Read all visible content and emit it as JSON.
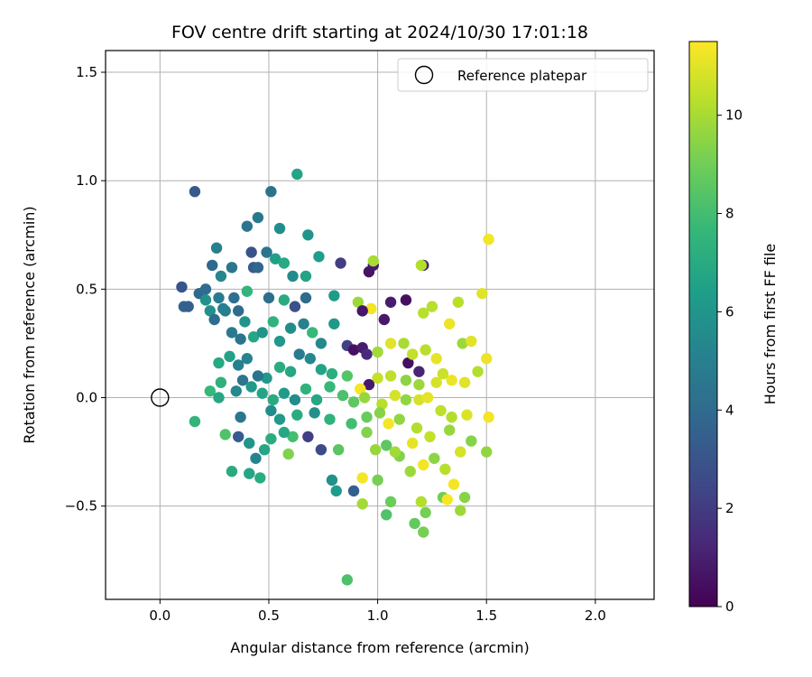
{
  "chart_data": {
    "type": "scatter",
    "title": "FOV centre drift starting at 2024/10/30 17:01:18",
    "xlabel": "Angular distance from reference (arcmin)",
    "ylabel": "Rotation from reference (arcmin)",
    "xlim": [
      -0.25,
      2.27
    ],
    "ylim": [
      -0.93,
      1.6
    ],
    "xticks": [
      0.0,
      0.5,
      1.0,
      1.5,
      2.0
    ],
    "xtick_labels": [
      "0.0",
      "0.5",
      "1.0",
      "1.5",
      "2.0"
    ],
    "yticks": [
      -0.5,
      0.0,
      0.5,
      1.0,
      1.5
    ],
    "ytick_labels": [
      "−0.5",
      "0.0",
      "0.5",
      "1.0",
      "1.5"
    ],
    "grid": true,
    "legend": {
      "placement": "top-right",
      "entries": [
        {
          "label": "Reference platepar",
          "marker": "open-circle"
        }
      ]
    },
    "reference_point": {
      "x": 0.0,
      "y": 0.0
    },
    "colorbar": {
      "label": "Hours from first FF file",
      "colormap": "viridis",
      "range": [
        0,
        11.5
      ],
      "ticks": [
        0,
        2,
        4,
        6,
        8,
        10
      ],
      "tick_labels": [
        "0",
        "2",
        "4",
        "6",
        "8",
        "10"
      ]
    },
    "points": [
      {
        "x": 0.16,
        "y": 0.95,
        "c": 3.2
      },
      {
        "x": 0.63,
        "y": 1.03,
        "c": 6.7
      },
      {
        "x": 0.51,
        "y": 0.95,
        "c": 4.3
      },
      {
        "x": 0.4,
        "y": 0.79,
        "c": 4.4
      },
      {
        "x": 0.45,
        "y": 0.83,
        "c": 4.6
      },
      {
        "x": 0.55,
        "y": 0.78,
        "c": 5.6
      },
      {
        "x": 0.68,
        "y": 0.75,
        "c": 6.0
      },
      {
        "x": 0.1,
        "y": 0.51,
        "c": 3.0
      },
      {
        "x": 0.11,
        "y": 0.42,
        "c": 3.6
      },
      {
        "x": 0.13,
        "y": 0.42,
        "c": 3.5
      },
      {
        "x": 0.18,
        "y": 0.48,
        "c": 3.9
      },
      {
        "x": 0.21,
        "y": 0.5,
        "c": 4.1
      },
      {
        "x": 0.24,
        "y": 0.61,
        "c": 3.9
      },
      {
        "x": 0.26,
        "y": 0.69,
        "c": 5.0
      },
      {
        "x": 0.28,
        "y": 0.56,
        "c": 5.3
      },
      {
        "x": 0.27,
        "y": 0.46,
        "c": 4.8
      },
      {
        "x": 0.3,
        "y": 0.4,
        "c": 4.7
      },
      {
        "x": 0.33,
        "y": 0.6,
        "c": 4.5
      },
      {
        "x": 0.34,
        "y": 0.46,
        "c": 4.2
      },
      {
        "x": 0.36,
        "y": 0.4,
        "c": 4.0
      },
      {
        "x": 0.42,
        "y": 0.67,
        "c": 2.9
      },
      {
        "x": 0.43,
        "y": 0.6,
        "c": 3.3
      },
      {
        "x": 0.45,
        "y": 0.6,
        "c": 3.8
      },
      {
        "x": 0.49,
        "y": 0.67,
        "c": 4.5
      },
      {
        "x": 0.53,
        "y": 0.64,
        "c": 6.5
      },
      {
        "x": 0.57,
        "y": 0.62,
        "c": 6.9
      },
      {
        "x": 0.61,
        "y": 0.56,
        "c": 5.5
      },
      {
        "x": 0.67,
        "y": 0.56,
        "c": 6.7
      },
      {
        "x": 0.73,
        "y": 0.65,
        "c": 6.4
      },
      {
        "x": 0.83,
        "y": 0.62,
        "c": 2.1
      },
      {
        "x": 0.96,
        "y": 0.58,
        "c": 0.6
      },
      {
        "x": 0.98,
        "y": 0.61,
        "c": 0.8
      },
      {
        "x": 0.98,
        "y": 0.63,
        "c": 10.0
      },
      {
        "x": 1.21,
        "y": 0.61,
        "c": 1.0
      },
      {
        "x": 1.2,
        "y": 0.61,
        "c": 10.2
      },
      {
        "x": 1.51,
        "y": 0.73,
        "c": 11.3
      },
      {
        "x": 1.48,
        "y": 0.48,
        "c": 11.0
      },
      {
        "x": 1.37,
        "y": 0.44,
        "c": 10.3
      },
      {
        "x": 1.25,
        "y": 0.42,
        "c": 10.3
      },
      {
        "x": 1.21,
        "y": 0.39,
        "c": 10.3
      },
      {
        "x": 1.13,
        "y": 0.45,
        "c": 0.5
      },
      {
        "x": 1.06,
        "y": 0.44,
        "c": 0.9
      },
      {
        "x": 0.91,
        "y": 0.44,
        "c": 9.8
      },
      {
        "x": 0.97,
        "y": 0.41,
        "c": 11.3
      },
      {
        "x": 1.03,
        "y": 0.36,
        "c": 0.8
      },
      {
        "x": 0.93,
        "y": 0.4,
        "c": 0.7
      },
      {
        "x": 0.8,
        "y": 0.47,
        "c": 6.3
      },
      {
        "x": 0.67,
        "y": 0.46,
        "c": 4.0
      },
      {
        "x": 0.62,
        "y": 0.42,
        "c": 2.8
      },
      {
        "x": 0.57,
        "y": 0.45,
        "c": 7.0
      },
      {
        "x": 0.5,
        "y": 0.46,
        "c": 4.2
      },
      {
        "x": 0.4,
        "y": 0.49,
        "c": 7.5
      },
      {
        "x": 0.21,
        "y": 0.45,
        "c": 5.8
      },
      {
        "x": 0.23,
        "y": 0.4,
        "c": 5.8
      },
      {
        "x": 0.25,
        "y": 0.36,
        "c": 4.1
      },
      {
        "x": 0.29,
        "y": 0.41,
        "c": 5.0
      },
      {
        "x": 0.33,
        "y": 0.3,
        "c": 4.7
      },
      {
        "x": 0.37,
        "y": 0.27,
        "c": 4.4
      },
      {
        "x": 0.39,
        "y": 0.35,
        "c": 5.9
      },
      {
        "x": 0.43,
        "y": 0.28,
        "c": 6.8
      },
      {
        "x": 0.47,
        "y": 0.3,
        "c": 6.0
      },
      {
        "x": 0.52,
        "y": 0.35,
        "c": 7.4
      },
      {
        "x": 0.55,
        "y": 0.26,
        "c": 6.1
      },
      {
        "x": 0.6,
        "y": 0.32,
        "c": 5.6
      },
      {
        "x": 0.66,
        "y": 0.34,
        "c": 5.0
      },
      {
        "x": 0.7,
        "y": 0.3,
        "c": 7.7
      },
      {
        "x": 0.74,
        "y": 0.25,
        "c": 5.4
      },
      {
        "x": 0.8,
        "y": 0.34,
        "c": 6.1
      },
      {
        "x": 0.86,
        "y": 0.24,
        "c": 2.2
      },
      {
        "x": 0.89,
        "y": 0.22,
        "c": 0.5
      },
      {
        "x": 0.93,
        "y": 0.23,
        "c": 0.9
      },
      {
        "x": 0.95,
        "y": 0.2,
        "c": 1.4
      },
      {
        "x": 1.0,
        "y": 0.21,
        "c": 9.9
      },
      {
        "x": 1.06,
        "y": 0.25,
        "c": 11.0
      },
      {
        "x": 1.12,
        "y": 0.25,
        "c": 10.0
      },
      {
        "x": 1.14,
        "y": 0.16,
        "c": 0.5
      },
      {
        "x": 1.19,
        "y": 0.12,
        "c": 1.2
      },
      {
        "x": 1.16,
        "y": 0.2,
        "c": 10.5
      },
      {
        "x": 1.22,
        "y": 0.22,
        "c": 10.3
      },
      {
        "x": 1.27,
        "y": 0.18,
        "c": 11.1
      },
      {
        "x": 1.3,
        "y": 0.11,
        "c": 10.6
      },
      {
        "x": 1.33,
        "y": 0.34,
        "c": 11.2
      },
      {
        "x": 1.39,
        "y": 0.25,
        "c": 9.8
      },
      {
        "x": 1.43,
        "y": 0.26,
        "c": 11.0
      },
      {
        "x": 1.5,
        "y": 0.18,
        "c": 11.2
      },
      {
        "x": 1.46,
        "y": 0.12,
        "c": 10.2
      },
      {
        "x": 1.4,
        "y": 0.07,
        "c": 11.0
      },
      {
        "x": 1.34,
        "y": 0.08,
        "c": 11.2
      },
      {
        "x": 1.27,
        "y": 0.07,
        "c": 10.8
      },
      {
        "x": 1.19,
        "y": 0.06,
        "c": 9.8
      },
      {
        "x": 1.13,
        "y": 0.08,
        "c": 9.5
      },
      {
        "x": 1.06,
        "y": 0.1,
        "c": 10.4
      },
      {
        "x": 1.0,
        "y": 0.09,
        "c": 10.5
      },
      {
        "x": 0.96,
        "y": 0.06,
        "c": 0.8
      },
      {
        "x": 0.92,
        "y": 0.04,
        "c": 11.3
      },
      {
        "x": 0.86,
        "y": 0.1,
        "c": 8.4
      },
      {
        "x": 0.79,
        "y": 0.11,
        "c": 7.2
      },
      {
        "x": 0.74,
        "y": 0.13,
        "c": 6.7
      },
      {
        "x": 0.69,
        "y": 0.18,
        "c": 5.4
      },
      {
        "x": 0.64,
        "y": 0.2,
        "c": 4.8
      },
      {
        "x": 0.6,
        "y": 0.12,
        "c": 6.8
      },
      {
        "x": 0.55,
        "y": 0.14,
        "c": 7.1
      },
      {
        "x": 0.49,
        "y": 0.09,
        "c": 6.1
      },
      {
        "x": 0.45,
        "y": 0.1,
        "c": 4.4
      },
      {
        "x": 0.4,
        "y": 0.18,
        "c": 5.2
      },
      {
        "x": 0.36,
        "y": 0.15,
        "c": 5.0
      },
      {
        "x": 0.32,
        "y": 0.19,
        "c": 6.6
      },
      {
        "x": 0.27,
        "y": 0.16,
        "c": 6.9
      },
      {
        "x": 0.28,
        "y": 0.07,
        "c": 7.3
      },
      {
        "x": 0.23,
        "y": 0.03,
        "c": 7.7
      },
      {
        "x": 0.27,
        "y": 0.0,
        "c": 6.8
      },
      {
        "x": 0.35,
        "y": 0.03,
        "c": 5.4
      },
      {
        "x": 0.38,
        "y": 0.08,
        "c": 4.5
      },
      {
        "x": 0.42,
        "y": 0.05,
        "c": 6.2
      },
      {
        "x": 0.47,
        "y": 0.02,
        "c": 6.7
      },
      {
        "x": 0.52,
        "y": -0.01,
        "c": 7.0
      },
      {
        "x": 0.57,
        "y": 0.02,
        "c": 6.2
      },
      {
        "x": 0.62,
        "y": -0.01,
        "c": 5.6
      },
      {
        "x": 0.67,
        "y": 0.04,
        "c": 7.4
      },
      {
        "x": 0.72,
        "y": -0.01,
        "c": 6.8
      },
      {
        "x": 0.78,
        "y": 0.05,
        "c": 7.7
      },
      {
        "x": 0.84,
        "y": 0.01,
        "c": 8.2
      },
      {
        "x": 0.89,
        "y": -0.02,
        "c": 8.6
      },
      {
        "x": 0.94,
        "y": 0.0,
        "c": 9.7
      },
      {
        "x": 1.02,
        "y": -0.03,
        "c": 10.3
      },
      {
        "x": 1.08,
        "y": 0.01,
        "c": 10.8
      },
      {
        "x": 1.13,
        "y": -0.01,
        "c": 9.6
      },
      {
        "x": 1.19,
        "y": -0.01,
        "c": 10.8
      },
      {
        "x": 1.23,
        "y": 0.0,
        "c": 11.1
      },
      {
        "x": 1.29,
        "y": -0.06,
        "c": 10.4
      },
      {
        "x": 1.34,
        "y": -0.09,
        "c": 10.2
      },
      {
        "x": 1.41,
        "y": -0.08,
        "c": 10.9
      },
      {
        "x": 1.51,
        "y": -0.09,
        "c": 11.3
      },
      {
        "x": 1.5,
        "y": -0.25,
        "c": 9.6
      },
      {
        "x": 1.43,
        "y": -0.2,
        "c": 9.4
      },
      {
        "x": 1.38,
        "y": -0.25,
        "c": 10.8
      },
      {
        "x": 1.35,
        "y": -0.4,
        "c": 11.3
      },
      {
        "x": 1.4,
        "y": -0.46,
        "c": 9.4
      },
      {
        "x": 1.38,
        "y": -0.52,
        "c": 9.8
      },
      {
        "x": 1.3,
        "y": -0.46,
        "c": 9.0
      },
      {
        "x": 1.32,
        "y": -0.47,
        "c": 11.4
      },
      {
        "x": 1.22,
        "y": -0.53,
        "c": 9.1
      },
      {
        "x": 1.2,
        "y": -0.48,
        "c": 10.2
      },
      {
        "x": 1.17,
        "y": -0.58,
        "c": 8.7
      },
      {
        "x": 1.21,
        "y": -0.62,
        "c": 9.1
      },
      {
        "x": 1.15,
        "y": -0.34,
        "c": 9.8
      },
      {
        "x": 1.21,
        "y": -0.31,
        "c": 11.3
      },
      {
        "x": 1.26,
        "y": -0.28,
        "c": 9.5
      },
      {
        "x": 1.31,
        "y": -0.33,
        "c": 10.3
      },
      {
        "x": 1.1,
        "y": -0.27,
        "c": 9.3
      },
      {
        "x": 1.04,
        "y": -0.22,
        "c": 8.6
      },
      {
        "x": 1.05,
        "y": -0.12,
        "c": 11.3
      },
      {
        "x": 1.08,
        "y": -0.25,
        "c": 9.9
      },
      {
        "x": 0.99,
        "y": -0.24,
        "c": 9.7
      },
      {
        "x": 0.95,
        "y": -0.16,
        "c": 9.3
      },
      {
        "x": 0.93,
        "y": -0.37,
        "c": 11.3
      },
      {
        "x": 0.89,
        "y": -0.43,
        "c": 3.5
      },
      {
        "x": 0.93,
        "y": -0.49,
        "c": 9.9
      },
      {
        "x": 1.0,
        "y": -0.38,
        "c": 9.1
      },
      {
        "x": 1.06,
        "y": -0.48,
        "c": 8.9
      },
      {
        "x": 1.04,
        "y": -0.54,
        "c": 8.3
      },
      {
        "x": 0.86,
        "y": -0.84,
        "c": 8.2
      },
      {
        "x": 0.81,
        "y": -0.43,
        "c": 6.3
      },
      {
        "x": 0.79,
        "y": -0.38,
        "c": 5.8
      },
      {
        "x": 0.82,
        "y": -0.24,
        "c": 8.5
      },
      {
        "x": 0.74,
        "y": -0.24,
        "c": 2.6
      },
      {
        "x": 0.68,
        "y": -0.18,
        "c": 2.1
      },
      {
        "x": 0.61,
        "y": -0.18,
        "c": 8.0
      },
      {
        "x": 0.59,
        "y": -0.26,
        "c": 9.3
      },
      {
        "x": 0.57,
        "y": -0.16,
        "c": 6.8
      },
      {
        "x": 0.51,
        "y": -0.19,
        "c": 7.1
      },
      {
        "x": 0.48,
        "y": -0.24,
        "c": 6.8
      },
      {
        "x": 0.44,
        "y": -0.28,
        "c": 5.2
      },
      {
        "x": 0.41,
        "y": -0.21,
        "c": 6.0
      },
      {
        "x": 0.36,
        "y": -0.18,
        "c": 3.3
      },
      {
        "x": 0.3,
        "y": -0.17,
        "c": 8.3
      },
      {
        "x": 0.33,
        "y": -0.34,
        "c": 7.0
      },
      {
        "x": 0.41,
        "y": -0.35,
        "c": 6.8
      },
      {
        "x": 0.46,
        "y": -0.37,
        "c": 7.1
      },
      {
        "x": 0.16,
        "y": -0.11,
        "c": 7.5
      },
      {
        "x": 0.37,
        "y": -0.09,
        "c": 4.5
      },
      {
        "x": 0.51,
        "y": -0.06,
        "c": 5.6
      },
      {
        "x": 0.55,
        "y": -0.1,
        "c": 6.2
      },
      {
        "x": 0.63,
        "y": -0.08,
        "c": 7.1
      },
      {
        "x": 0.71,
        "y": -0.07,
        "c": 5.7
      },
      {
        "x": 0.78,
        "y": -0.1,
        "c": 7.4
      },
      {
        "x": 0.88,
        "y": -0.12,
        "c": 8.0
      },
      {
        "x": 0.95,
        "y": -0.09,
        "c": 8.8
      },
      {
        "x": 1.01,
        "y": -0.07,
        "c": 9.4
      },
      {
        "x": 1.1,
        "y": -0.1,
        "c": 9.6
      },
      {
        "x": 1.18,
        "y": -0.14,
        "c": 10.2
      },
      {
        "x": 1.24,
        "y": -0.18,
        "c": 10.5
      },
      {
        "x": 1.16,
        "y": -0.21,
        "c": 11.1
      },
      {
        "x": 1.33,
        "y": -0.15,
        "c": 9.7
      }
    ]
  }
}
